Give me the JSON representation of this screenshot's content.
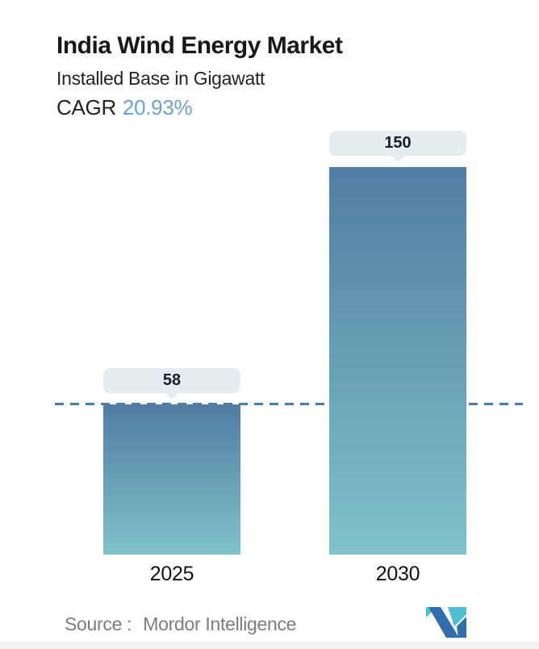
{
  "header": {
    "title": "India Wind Energy Market",
    "subtitle": "Installed Base in Gigawatt",
    "cagr_label": "CAGR",
    "cagr_value": "20.93%"
  },
  "chart_data": {
    "type": "bar",
    "title": "India Wind Energy Market",
    "subtitle": "Installed Base in Gigawatt",
    "ylabel": "Installed Base (Gigawatt)",
    "categories": [
      "2025",
      "2030"
    ],
    "values": [
      58,
      150
    ],
    "ylim": [
      0,
      150
    ],
    "grid": false,
    "legend": "none",
    "cagr_percent": "20.93%",
    "reference_line": {
      "value": 58,
      "style": "dashed"
    },
    "data_labels": [
      "58",
      "150"
    ]
  },
  "footer": {
    "source_label": "Source :",
    "source_value": "Mordor Intelligence"
  },
  "colors": {
    "bar_gradient_top": "#527da3",
    "bar_gradient_bottom": "#7fc2c9",
    "callout_bg": "#e5edf0",
    "dashed_line": "#4a7ca6",
    "cagr_value": "#6ca2ce",
    "source_text": "#7d7d7d",
    "logo_teal": "#4cc0d0",
    "logo_blue": "#2f6fad"
  }
}
